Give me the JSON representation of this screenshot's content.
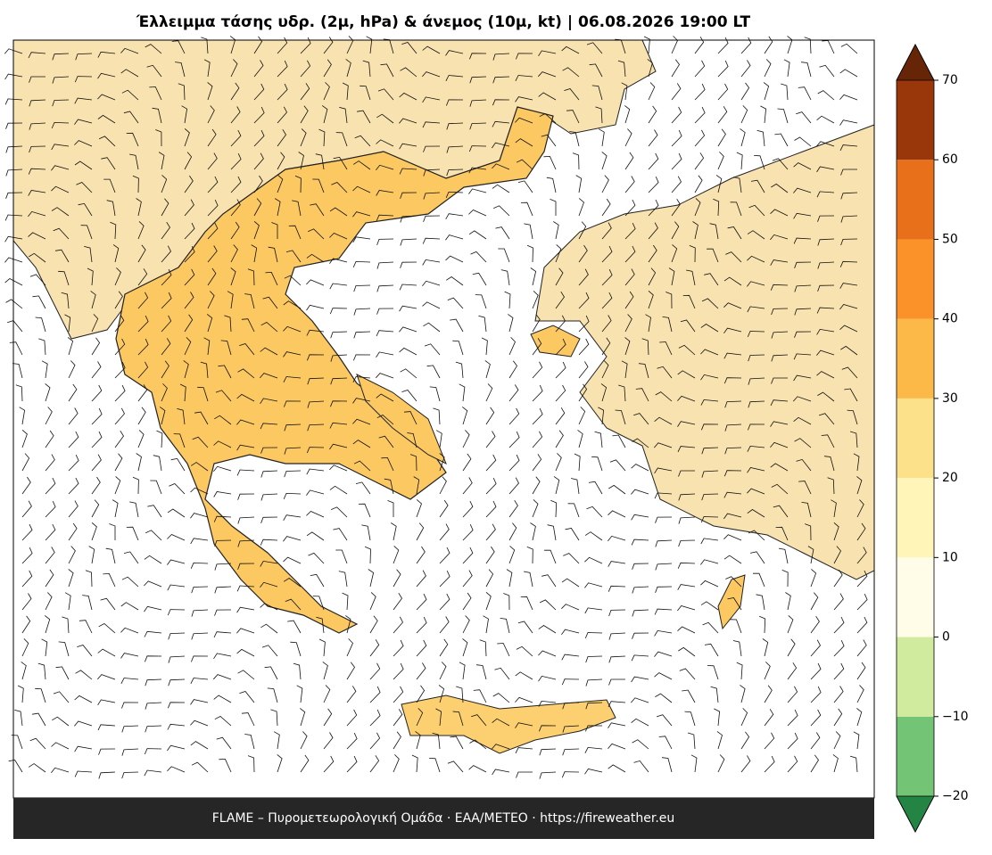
{
  "title": "Έλλειμμα τάσης υδρ. (2μ, hPa) & άνεμος (10μ, kt)  |  06.08.2026 19:00 LT",
  "colorbar": {
    "levels": [
      -20,
      -10,
      0,
      10,
      20,
      30,
      40,
      50,
      60,
      70
    ],
    "colors": [
      "#74c476",
      "#d0eb9d",
      "#fffde8",
      "#fff5b8",
      "#fde08a",
      "#fdb947",
      "#fb9129",
      "#e8701a",
      "#99370a"
    ],
    "under_color": "#238443",
    "over_color": "#662506",
    "ticks": [
      {
        "value": -20,
        "label": "−20"
      },
      {
        "value": -10,
        "label": "−10"
      },
      0,
      10,
      20,
      30,
      40,
      50,
      60,
      70
    ]
  },
  "footer": "FLAME – Πυρομετεωρολογική Ομάδα · ΕΑΑ/METEO · https://fireweather.eu"
}
